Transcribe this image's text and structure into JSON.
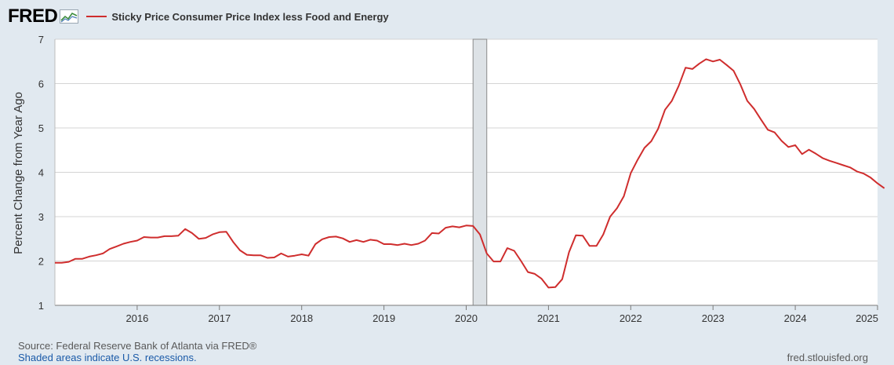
{
  "logo": {
    "text": "FRED"
  },
  "colors": {
    "series": "#cf2d2d",
    "grid": "#d4d4d4",
    "recession": "#dde2e6",
    "recession_edge": "#8a8a8a"
  },
  "footer": {
    "source": "Source: Federal Reserve Bank of Atlanta via FRED®",
    "recession_note": "Shaded areas indicate U.S. recessions.",
    "site": "fred.stlouisfed.org"
  },
  "chart_data": {
    "type": "line",
    "title": "",
    "xlabel": "",
    "ylabel": "Percent Change from Year Ago",
    "xlim": [
      2015.0,
      2025.0
    ],
    "ylim": [
      1,
      7
    ],
    "x_ticks": [
      2016,
      2017,
      2018,
      2019,
      2020,
      2021,
      2022,
      2023,
      2024,
      2025
    ],
    "x_tick_labels": [
      "2016",
      "2017",
      "2018",
      "2019",
      "2020",
      "2021",
      "2022",
      "2023",
      "2024",
      "2025"
    ],
    "y_ticks": [
      1,
      2,
      3,
      4,
      5,
      6,
      7
    ],
    "y_tick_labels": [
      "1",
      "2",
      "3",
      "4",
      "5",
      "6",
      "7"
    ],
    "grid": true,
    "legend": "top-left",
    "recessions": [
      {
        "start": 2020.083,
        "end": 2020.25
      }
    ],
    "series": [
      {
        "name": "Sticky Price Consumer Price Index less Food and Energy",
        "x_start": 2015.0,
        "x_step": 0.08333,
        "values": [
          1.96,
          1.96,
          1.98,
          2.05,
          2.05,
          2.1,
          2.13,
          2.17,
          2.27,
          2.33,
          2.39,
          2.43,
          2.46,
          2.54,
          2.53,
          2.53,
          2.56,
          2.56,
          2.57,
          2.72,
          2.63,
          2.5,
          2.52,
          2.6,
          2.65,
          2.66,
          2.43,
          2.24,
          2.14,
          2.13,
          2.13,
          2.07,
          2.08,
          2.17,
          2.1,
          2.12,
          2.15,
          2.12,
          2.38,
          2.49,
          2.54,
          2.55,
          2.51,
          2.43,
          2.47,
          2.43,
          2.48,
          2.46,
          2.38,
          2.38,
          2.36,
          2.39,
          2.36,
          2.39,
          2.46,
          2.63,
          2.62,
          2.75,
          2.78,
          2.76,
          2.8,
          2.79,
          2.6,
          2.17,
          1.99,
          1.99,
          2.29,
          2.23,
          2.0,
          1.75,
          1.71,
          1.6,
          1.4,
          1.41,
          1.59,
          2.2,
          2.58,
          2.57,
          2.34,
          2.34,
          2.6,
          3.0,
          3.19,
          3.46,
          3.98,
          4.28,
          4.55,
          4.7,
          4.98,
          5.41,
          5.61,
          5.95,
          6.36,
          6.33,
          6.45,
          6.55,
          6.5,
          6.54,
          6.42,
          6.29,
          5.98,
          5.61,
          5.43,
          5.19,
          4.96,
          4.9,
          4.71,
          4.57,
          4.61,
          4.41,
          4.51,
          4.42,
          4.32,
          4.26,
          4.21,
          4.16,
          4.11,
          4.02,
          3.97,
          3.88,
          3.75,
          3.64
        ]
      }
    ]
  }
}
